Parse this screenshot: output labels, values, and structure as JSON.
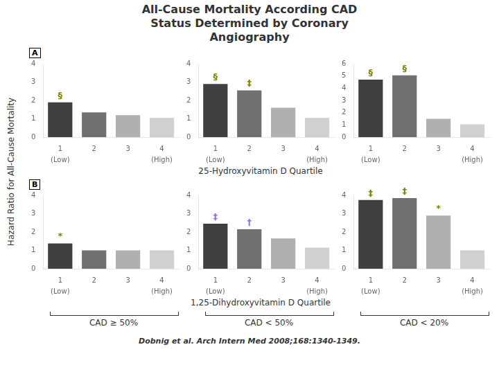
{
  "title": [
    "All-Cause Mortality According CAD",
    "Status Determined by Coronary",
    "Angiography"
  ],
  "ylabel": "Hazard Ratio for All-Cause Mortality",
  "annotations": [
    "Dobnig et al. Arch Intern Med 2008;168:1340-1349."
  ],
  "columns": [
    "CAD ≥ 50%",
    "CAD < 50%",
    "CAD < 20%"
  ],
  "rows": [
    {
      "label": "A",
      "xlabel": "25-Hydroxyvitamin D Quartile"
    },
    {
      "label": "B",
      "xlabel": "1,25-Dihydroxyvitamin D Quartile"
    }
  ],
  "chart_data": [
    {
      "type": "bar",
      "categories": [
        "1",
        "2",
        "3",
        "4"
      ],
      "values": [
        1.9,
        1.35,
        1.2,
        1.05
      ],
      "colors": [
        "#404040",
        "#707070",
        "#B0B0B0",
        "#D0D0D0"
      ],
      "ylim": [
        0,
        4
      ],
      "yticks": [
        0,
        1,
        2,
        3,
        4
      ],
      "grid": false,
      "end_labels": [
        "(Low)",
        "(High)"
      ],
      "annotations": [
        {
          "category": "1",
          "text": "§",
          "color": "#808000"
        }
      ]
    },
    {
      "type": "bar",
      "categories": [
        "1",
        "2",
        "3",
        "4"
      ],
      "values": [
        2.9,
        2.55,
        1.6,
        1.05
      ],
      "colors": [
        "#404040",
        "#707070",
        "#B0B0B0",
        "#D0D0D0"
      ],
      "ylim": [
        0,
        4
      ],
      "yticks": [
        0,
        1,
        2,
        3,
        4
      ],
      "grid": false,
      "end_labels": [
        "(Low)",
        "(High)"
      ],
      "annotations": [
        {
          "category": "1",
          "text": "§",
          "color": "#808000"
        },
        {
          "category": "2",
          "text": "‡",
          "color": "#808000"
        }
      ]
    },
    {
      "type": "bar",
      "categories": [
        "1",
        "2",
        "3",
        "4"
      ],
      "values": [
        4.7,
        5.05,
        1.5,
        1.05
      ],
      "colors": [
        "#404040",
        "#707070",
        "#B0B0B0",
        "#D0D0D0"
      ],
      "ylim": [
        0,
        6
      ],
      "yticks": [
        0,
        1,
        2,
        3,
        4,
        5,
        6
      ],
      "grid": false,
      "end_labels": [
        "(Low)",
        "(High)"
      ],
      "annotations": [
        {
          "category": "1",
          "text": "§",
          "color": "#808000"
        },
        {
          "category": "2",
          "text": "§",
          "color": "#808000"
        }
      ]
    },
    {
      "type": "bar",
      "categories": [
        "1",
        "2",
        "3",
        "4"
      ],
      "values": [
        1.38,
        1.0,
        1.0,
        1.0
      ],
      "colors": [
        "#404040",
        "#707070",
        "#B0B0B0",
        "#D0D0D0"
      ],
      "ylim": [
        0,
        4
      ],
      "yticks": [
        0,
        1,
        2,
        3,
        4
      ],
      "grid": false,
      "end_labels": [
        "(Low)",
        "(High)"
      ],
      "annotations": [
        {
          "category": "1",
          "text": "*",
          "color": "#808000"
        }
      ]
    },
    {
      "type": "bar",
      "categories": [
        "1",
        "2",
        "3",
        "4"
      ],
      "values": [
        2.45,
        2.15,
        1.65,
        1.15
      ],
      "colors": [
        "#404040",
        "#707070",
        "#B0B0B0",
        "#D0D0D0"
      ],
      "ylim": [
        0,
        4
      ],
      "yticks": [
        0,
        1,
        2,
        3,
        4
      ],
      "grid": false,
      "end_labels": [
        "(Low)",
        "(High)"
      ],
      "annotations": [
        {
          "category": "1",
          "text": "‡",
          "color": "#9370DB"
        },
        {
          "category": "2",
          "text": "†",
          "color": "#9370DB"
        }
      ]
    },
    {
      "type": "bar",
      "categories": [
        "1",
        "2",
        "3",
        "4"
      ],
      "values": [
        3.75,
        3.85,
        2.9,
        1.0
      ],
      "colors": [
        "#404040",
        "#707070",
        "#B0B0B0",
        "#D0D0D0"
      ],
      "ylim": [
        0,
        4
      ],
      "yticks": [
        0,
        1,
        2,
        3,
        4
      ],
      "grid": false,
      "end_labels": [
        "(Low)",
        "(High)"
      ],
      "annotations": [
        {
          "category": "1",
          "text": "‡",
          "color": "#808000"
        },
        {
          "category": "2",
          "text": "‡",
          "color": "#808000"
        },
        {
          "category": "3",
          "text": "*",
          "color": "#808000"
        }
      ]
    }
  ]
}
